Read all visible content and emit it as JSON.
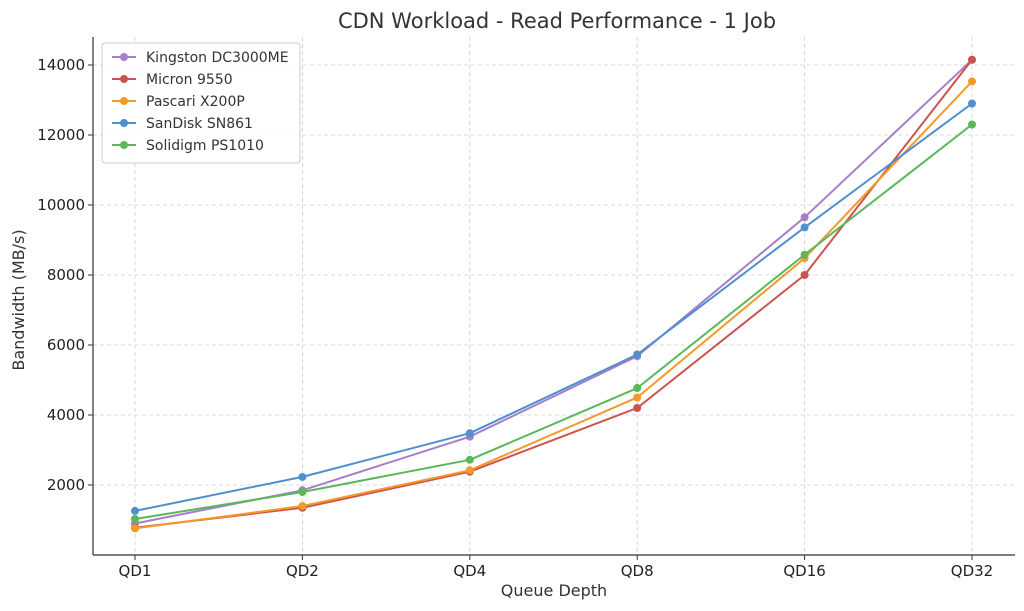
{
  "chart_data": {
    "type": "line",
    "title": "CDN Workload - Read Performance - 1 Job",
    "xlabel": "Queue Depth",
    "ylabel": "Bandwidth (MB/s)",
    "categories": [
      "QD1",
      "QD2",
      "QD4",
      "QD8",
      "QD16",
      "QD32"
    ],
    "yticks": [
      2000,
      4000,
      6000,
      8000,
      10000,
      12000,
      14000
    ],
    "ylim": [
      0,
      14800
    ],
    "grid": true,
    "legend_position": "top-left",
    "series": [
      {
        "name": "Kingston DC3000ME",
        "color": "#a57fc8",
        "values": [
          900,
          1850,
          3380,
          5680,
          9650,
          14150
        ]
      },
      {
        "name": "Micron 9550",
        "color": "#cc5450",
        "values": [
          780,
          1350,
          2380,
          4200,
          8000,
          14150
        ]
      },
      {
        "name": "Pascari X200P",
        "color": "#f39a2b",
        "values": [
          760,
          1400,
          2420,
          4500,
          8480,
          13530
        ]
      },
      {
        "name": "SanDisk SN861",
        "color": "#4f8fcf",
        "values": [
          1260,
          2230,
          3480,
          5730,
          9360,
          12900
        ]
      },
      {
        "name": "Solidigm PS1010",
        "color": "#5ab85a",
        "values": [
          1030,
          1800,
          2720,
          4770,
          8580,
          12300
        ]
      }
    ]
  }
}
